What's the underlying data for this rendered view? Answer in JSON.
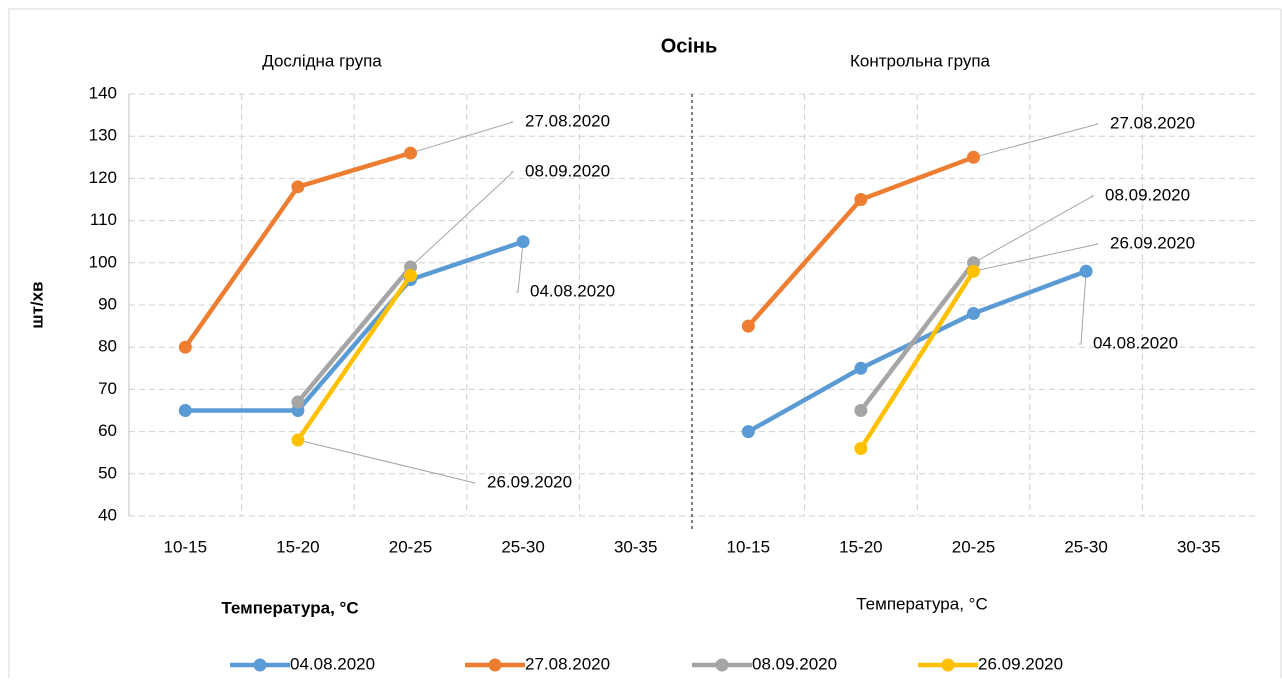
{
  "chart_data": {
    "type": "line",
    "title": "Осінь",
    "panel_titles": [
      "Дослідна група",
      "Контрольна група"
    ],
    "y_label": "шт/хв",
    "x_labels": [
      "Температура, °C",
      "Температура, °C"
    ],
    "categories": [
      "10-15",
      "15-20",
      "20-25",
      "25-30",
      "30-35",
      "10-15",
      "15-20",
      "20-25",
      "25-30",
      "30-35"
    ],
    "series": [
      {
        "name": "04.08.2020",
        "color": "#5b9bd5",
        "values": [
          65,
          65,
          96,
          105,
          null,
          60,
          75,
          88,
          98,
          null
        ]
      },
      {
        "name": "27.08.2020",
        "color": "#ed7d31",
        "values": [
          80,
          118,
          126,
          null,
          null,
          85,
          115,
          125,
          null,
          null
        ]
      },
      {
        "name": "08.09.2020",
        "color": "#a5a5a5",
        "values": [
          null,
          67,
          99,
          null,
          null,
          null,
          65,
          100,
          null,
          null
        ]
      },
      {
        "name": "26.09.2020",
        "color": "#ffc000",
        "values": [
          null,
          58,
          97,
          null,
          null,
          null,
          56,
          98,
          null,
          null
        ]
      }
    ],
    "ylim": [
      40,
      140
    ],
    "yticks": [
      40,
      50,
      60,
      70,
      80,
      90,
      100,
      110,
      120,
      130,
      140
    ],
    "grid": true
  }
}
